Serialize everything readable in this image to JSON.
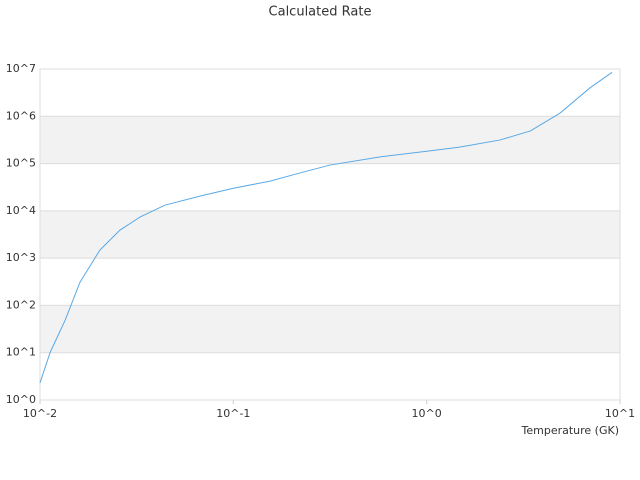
{
  "chart_data": {
    "type": "line",
    "title": "Calculated Rate",
    "xlabel": "Temperature (GK)",
    "xscale": "log",
    "yscale": "log",
    "xlim": [
      0.01,
      10
    ],
    "ylim": [
      1,
      10000000
    ],
    "xticks": [
      {
        "value": 0.01,
        "label": "10^-2"
      },
      {
        "value": 0.1,
        "label": "10^-1"
      },
      {
        "value": 1,
        "label": "10^0"
      },
      {
        "value": 10,
        "label": "10^1"
      }
    ],
    "yticks": [
      {
        "value": 1,
        "label": "10^0"
      },
      {
        "value": 10,
        "label": "10^1"
      },
      {
        "value": 100,
        "label": "10^2"
      },
      {
        "value": 1000,
        "label": "10^3"
      },
      {
        "value": 10000,
        "label": "10^4"
      },
      {
        "value": 100000,
        "label": "10^5"
      },
      {
        "value": 1000000,
        "label": "10^6"
      },
      {
        "value": 10000000,
        "label": "10^7"
      }
    ],
    "grid": true,
    "band_color": "#f2f2f2",
    "series": [
      {
        "color": "#5aa9e6",
        "x": [
          0.01,
          0.0113,
          0.0135,
          0.0161,
          0.0204,
          0.0259,
          0.0329,
          0.0442,
          0.0672,
          0.1,
          0.155,
          0.22,
          0.316,
          0.57,
          1,
          1.48,
          2.4,
          3.44,
          4.9,
          7.0,
          9.1
        ],
        "values": [
          2.3,
          10.3,
          49,
          310,
          1480,
          3900,
          7400,
          13200,
          20500,
          30000,
          42600,
          63000,
          93000,
          138000,
          182000,
          223000,
          316000,
          490000,
          1170000,
          4000000,
          8500000
        ]
      }
    ]
  }
}
